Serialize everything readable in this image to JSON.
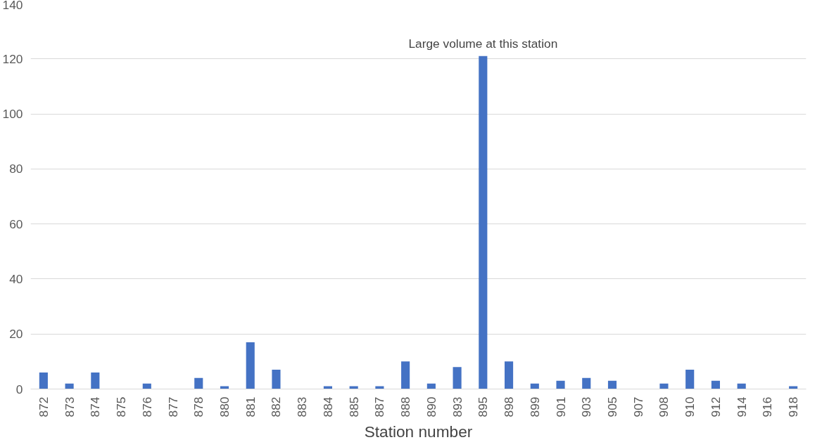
{
  "chart_data": {
    "type": "bar",
    "xlabel": "Station number",
    "categories": [
      "872",
      "873",
      "874",
      "875",
      "876",
      "877",
      "878",
      "880",
      "881",
      "882",
      "883",
      "884",
      "885",
      "887",
      "888",
      "890",
      "893",
      "895",
      "898",
      "899",
      "901",
      "903",
      "905",
      "907",
      "908",
      "910",
      "912",
      "914",
      "916",
      "918"
    ],
    "values": [
      6,
      2,
      6,
      0,
      2,
      0,
      4,
      1,
      17,
      7,
      0,
      1,
      1,
      1,
      10,
      2,
      8,
      121,
      10,
      2,
      3,
      4,
      3,
      0,
      2,
      7,
      3,
      2,
      0,
      1
    ],
    "color": "#4472c4",
    "ylim": [
      0,
      140
    ],
    "yticks": [
      0,
      20,
      40,
      60,
      80,
      100,
      120,
      140
    ],
    "grid": "y",
    "annotations": [
      {
        "text": "Large volume at this station",
        "x": "895",
        "y": 121
      }
    ]
  }
}
